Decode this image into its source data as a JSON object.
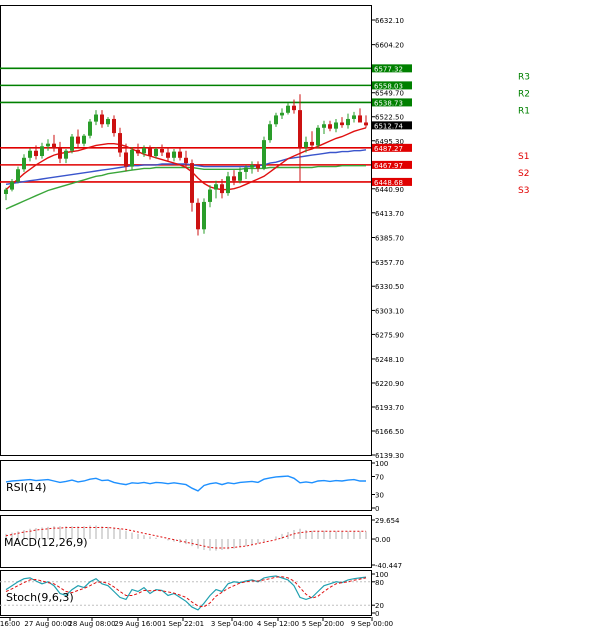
{
  "chart_data": [
    {
      "type": "candlestick",
      "title": "",
      "y_ticks": [
        "6632.10",
        "6604.20",
        "6549.70",
        "6522.50",
        "6495.30",
        "6440.90",
        "6413.70",
        "6385.70",
        "6357.70",
        "6330.50",
        "6303.10",
        "6275.90",
        "6248.10",
        "6220.90",
        "6193.70",
        "6166.50",
        "6139.30"
      ],
      "ylim": [
        6139.3,
        6632.1
      ],
      "current_price": "6512.74",
      "x_ticks": [
        "16:00",
        "27 Aug 00:00",
        "28 Aug 08:00",
        "29 Aug 16:00",
        "1 Sep 22:01",
        "3 Sep 04:00",
        "4 Sep 12:00",
        "5 Sep 20:00",
        "9 Sep 00:00"
      ],
      "levels": [
        {
          "name": "R3",
          "value": 6577.32,
          "label": "6577.32",
          "color": "#008000"
        },
        {
          "name": "R2",
          "value": 6558.03,
          "label": "6558.03",
          "color": "#008000"
        },
        {
          "name": "R1",
          "value": 6538.73,
          "label": "6538.73",
          "color": "#008000"
        },
        {
          "name": "S1",
          "value": 6487.27,
          "label": "6487.27",
          "color": "#e00000"
        },
        {
          "name": "S2",
          "value": 6467.97,
          "label": "6467.97",
          "color": "#e00000"
        },
        {
          "name": "S3",
          "value": 6448.68,
          "label": "6448.68",
          "color": "#e00000"
        }
      ],
      "candles": [
        [
          6435,
          6442,
          6428,
          6440
        ],
        [
          6440,
          6452,
          6438,
          6449
        ],
        [
          6449,
          6466,
          6447,
          6463
        ],
        [
          6463,
          6480,
          6460,
          6476
        ],
        [
          6476,
          6487,
          6472,
          6484
        ],
        [
          6484,
          6490,
          6474,
          6478
        ],
        [
          6478,
          6493,
          6475,
          6489
        ],
        [
          6489,
          6497,
          6484,
          6492
        ],
        [
          6492,
          6502,
          6483,
          6487
        ],
        [
          6487,
          6494,
          6470,
          6475
        ],
        [
          6475,
          6486,
          6470,
          6484
        ],
        [
          6484,
          6503,
          6481,
          6500
        ],
        [
          6500,
          6508,
          6488,
          6492
        ],
        [
          6492,
          6503,
          6489,
          6501
        ],
        [
          6501,
          6520,
          6498,
          6517
        ],
        [
          6517,
          6530,
          6513,
          6525
        ],
        [
          6525,
          6530,
          6510,
          6514
        ],
        [
          6514,
          6522,
          6511,
          6520
        ],
        [
          6520,
          6524,
          6500,
          6504
        ],
        [
          6504,
          6510,
          6477,
          6482
        ],
        [
          6482,
          6492,
          6461,
          6466
        ],
        [
          6466,
          6488,
          6462,
          6485
        ],
        [
          6485,
          6492,
          6478,
          6481
        ],
        [
          6481,
          6490,
          6477,
          6487
        ],
        [
          6487,
          6490,
          6474,
          6478
        ],
        [
          6478,
          6488,
          6475,
          6486
        ],
        [
          6486,
          6491,
          6478,
          6482
        ],
        [
          6482,
          6488,
          6472,
          6476
        ],
        [
          6476,
          6486,
          6472,
          6483
        ],
        [
          6483,
          6487,
          6473,
          6476
        ],
        [
          6476,
          6484,
          6465,
          6470
        ],
        [
          6470,
          6474,
          6415,
          6425
        ],
        [
          6425,
          6430,
          6388,
          6395
        ],
        [
          6395,
          6430,
          6390,
          6426
        ],
        [
          6426,
          6445,
          6420,
          6440
        ],
        [
          6440,
          6450,
          6430,
          6446
        ],
        [
          6446,
          6452,
          6430,
          6436
        ],
        [
          6436,
          6460,
          6433,
          6455
        ],
        [
          6455,
          6462,
          6445,
          6450
        ],
        [
          6450,
          6465,
          6447,
          6460
        ],
        [
          6460,
          6468,
          6452,
          6465
        ],
        [
          6465,
          6472,
          6458,
          6468
        ],
        [
          6468,
          6472,
          6460,
          6464
        ],
        [
          6464,
          6500,
          6462,
          6496
        ],
        [
          6496,
          6518,
          6493,
          6514
        ],
        [
          6514,
          6527,
          6511,
          6524
        ],
        [
          6524,
          6532,
          6520,
          6527
        ],
        [
          6527,
          6538,
          6525,
          6535
        ],
        [
          6535,
          6542,
          6526,
          6530
        ],
        [
          6530,
          6548,
          6448,
          6488
        ],
        [
          6488,
          6500,
          6482,
          6494
        ],
        [
          6494,
          6506,
          6486,
          6490
        ],
        [
          6490,
          6513,
          6487,
          6510
        ],
        [
          6510,
          6518,
          6503,
          6514
        ],
        [
          6514,
          6518,
          6506,
          6509
        ],
        [
          6509,
          6520,
          6505,
          6516
        ],
        [
          6516,
          6522,
          6510,
          6513
        ],
        [
          6513,
          6526,
          6509,
          6520
        ],
        [
          6520,
          6528,
          6516,
          6524
        ],
        [
          6524,
          6532,
          6518,
          6516
        ],
        [
          6516,
          6524,
          6510,
          6512.74
        ]
      ],
      "ma_red": [
        6440,
        6446,
        6452,
        6458,
        6463,
        6468,
        6472,
        6476,
        6479,
        6481,
        6482,
        6483,
        6484,
        6486,
        6488,
        6490,
        6491,
        6492,
        6492,
        6491,
        6489,
        6486,
        6483,
        6480,
        6478,
        6476,
        6474,
        6472,
        6470,
        6468,
        6465,
        6460,
        6453,
        6447,
        6443,
        6441,
        6440,
        6440,
        6441,
        6443,
        6446,
        6449,
        6452,
        6455,
        6460,
        6465,
        6470,
        6475,
        6478,
        6481,
        6484,
        6486,
        6489,
        6492,
        6495,
        6498,
        6500,
        6503,
        6506,
        6508,
        6510
      ],
      "ma_blue": [
        6446,
        6447,
        6448,
        6449,
        6450,
        6451,
        6452,
        6453,
        6454,
        6455,
        6456,
        6457,
        6458,
        6459,
        6460,
        6461,
        6462,
        6463,
        6464,
        6465,
        6466,
        6467,
        6467,
        6468,
        6468,
        6468,
        6469,
        6469,
        6469,
        6469,
        6469,
        6468,
        6467,
        6466,
        6466,
        6466,
        6466,
        6466,
        6466,
        6466,
        6466,
        6466,
        6467,
        6468,
        6470,
        6471,
        6473,
        6475,
        6476,
        6477,
        6478,
        6479,
        6480,
        6481,
        6482,
        6482,
        6483,
        6483,
        6484,
        6484,
        6485
      ],
      "ma_green": [
        6418,
        6421,
        6424,
        6427,
        6430,
        6433,
        6436,
        6439,
        6441,
        6443,
        6445,
        6447,
        6449,
        6451,
        6453,
        6455,
        6456,
        6458,
        6459,
        6460,
        6461,
        6462,
        6463,
        6464,
        6464,
        6465,
        6465,
        6465,
        6465,
        6465,
        6465,
        6465,
        6464,
        6463,
        6463,
        6463,
        6463,
        6463,
        6463,
        6463,
        6464,
        6464,
        6464,
        6464,
        6465,
        6465,
        6465,
        6465,
        6465,
        6465,
        6465,
        6465,
        6466,
        6466,
        6466,
        6466,
        6467,
        6467,
        6467,
        6467,
        6467
      ]
    },
    {
      "type": "line",
      "label": "RSI(14)",
      "y_ticks": [
        "100",
        "70",
        "30",
        "0"
      ],
      "ylim": [
        0,
        100
      ],
      "values": [
        58,
        60,
        61,
        62,
        63,
        61,
        62,
        63,
        60,
        57,
        59,
        62,
        58,
        60,
        64,
        66,
        61,
        62,
        57,
        54,
        52,
        56,
        55,
        57,
        54,
        57,
        56,
        54,
        56,
        54,
        52,
        44,
        38,
        50,
        54,
        56,
        52,
        56,
        54,
        57,
        58,
        59,
        57,
        64,
        67,
        69,
        70,
        71,
        66,
        56,
        58,
        56,
        60,
        61,
        59,
        61,
        60,
        62,
        63,
        60,
        60
      ]
    },
    {
      "type": "bar",
      "label": "MACD(12,26,9)",
      "y_ticks": [
        "29.654",
        "0.00",
        "-40.447"
      ],
      "ylim": [
        -40.447,
        29.654
      ],
      "histogram": [
        8,
        10,
        12,
        14,
        16,
        17,
        18,
        19,
        20,
        20,
        20,
        20,
        20,
        20,
        21,
        21,
        20,
        19,
        18,
        16,
        13,
        10,
        8,
        6,
        4,
        2,
        0,
        -2,
        -4,
        -6,
        -8,
        -11,
        -15,
        -17,
        -18,
        -18,
        -17,
        -16,
        -15,
        -13,
        -11,
        -9,
        -7,
        -4,
        0,
        4,
        8,
        11,
        14,
        16,
        14,
        13,
        13,
        13,
        12,
        12,
        12,
        12,
        12,
        12,
        12
      ],
      "signal": [
        5,
        7,
        9,
        11,
        12,
        14,
        15,
        16,
        17,
        17,
        18,
        18,
        18,
        18,
        18,
        18,
        18,
        18,
        17,
        16,
        15,
        13,
        11,
        9,
        7,
        5,
        3,
        1,
        -1,
        -3,
        -5,
        -7,
        -9,
        -11,
        -13,
        -14,
        -14,
        -14,
        -13,
        -12,
        -11,
        -9,
        -7,
        -5,
        -3,
        -1,
        2,
        5,
        8,
        10,
        11,
        12,
        12,
        12,
        12,
        12,
        12,
        12,
        12,
        12,
        12
      ]
    },
    {
      "type": "line",
      "label": "Stoch(9,6,3)",
      "y_ticks": [
        "100",
        "80",
        "20",
        "0"
      ],
      "ylim": [
        0,
        100
      ],
      "k": [
        60,
        70,
        80,
        88,
        90,
        82,
        75,
        80,
        70,
        50,
        45,
        60,
        70,
        65,
        80,
        88,
        75,
        70,
        55,
        40,
        35,
        60,
        55,
        65,
        50,
        60,
        58,
        45,
        50,
        40,
        30,
        15,
        8,
        25,
        45,
        60,
        55,
        75,
        80,
        78,
        82,
        85,
        80,
        90,
        93,
        95,
        90,
        85,
        70,
        40,
        35,
        40,
        55,
        70,
        75,
        80,
        78,
        85,
        88,
        90,
        92
      ],
      "d": [
        55,
        62,
        70,
        78,
        85,
        86,
        82,
        78,
        75,
        65,
        55,
        52,
        58,
        63,
        70,
        78,
        80,
        76,
        67,
        55,
        45,
        45,
        50,
        58,
        57,
        58,
        57,
        54,
        51,
        46,
        40,
        28,
        18,
        16,
        26,
        43,
        53,
        63,
        70,
        77,
        80,
        82,
        82,
        85,
        88,
        92,
        93,
        90,
        82,
        65,
        48,
        38,
        43,
        55,
        66,
        75,
        78,
        80,
        84,
        87,
        90
      ]
    }
  ]
}
